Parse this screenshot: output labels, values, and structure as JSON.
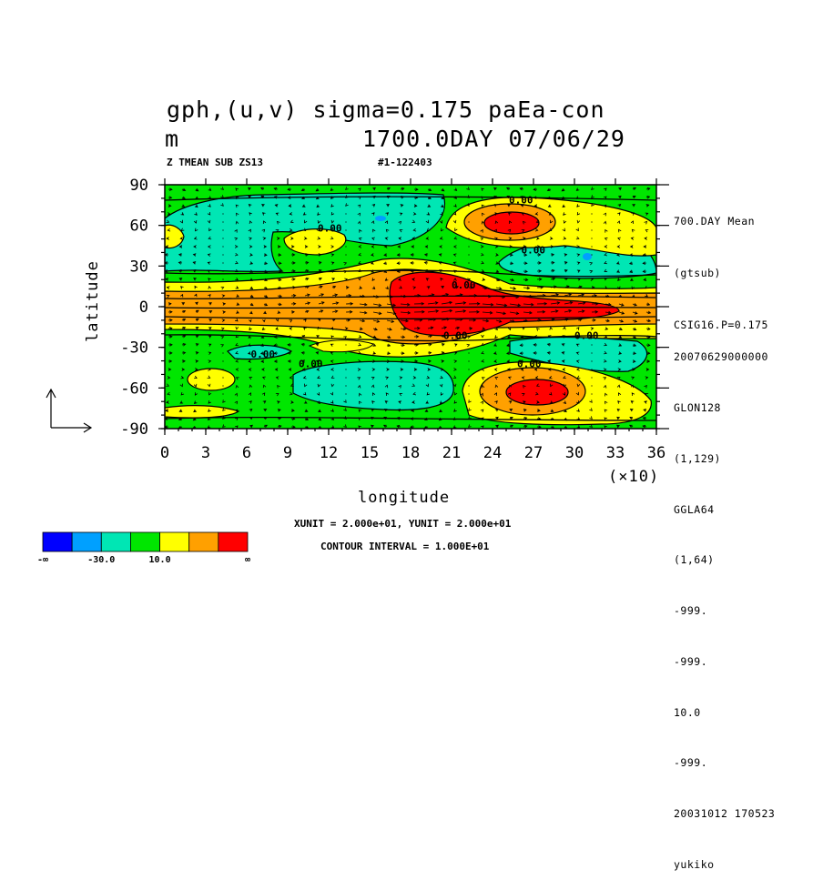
{
  "title": {
    "line1": "gph,(u,v) sigma=0.175 paEa-con",
    "line2_left": "m",
    "line2_right": "1700.0DAY 07/06/29"
  },
  "subtitle": {
    "left": "Z TMEAN SUB ZS13",
    "right": "#1-122403"
  },
  "side_info": [
    "700.DAY Mean",
    "(gtsub)",
    "CSIG16.P=0.175"
  ],
  "side_info2": [
    "20070629000000",
    "GLON128",
    "(1,129)",
    "GGLA64",
    "(1,64)",
    "-999.",
    "-999.",
    "10.0",
    "-999.",
    "20031012 170523",
    "yukiko"
  ],
  "units_text": "XUNIT = 2.000e+01, YUNIT = 2.000e+01",
  "contour_text": "CONTOUR INTERVAL = 1.000E+01",
  "colors": {
    "levels": [
      "#0000ff",
      "#00a0ff",
      "#00e6b4",
      "#00e600",
      "#ffff00",
      "#ffa000",
      "#ff0000"
    ]
  },
  "chart_data": {
    "type": "heatmap",
    "xlabel": "longitude",
    "ylabel": "latitude",
    "x_multiplier": "(×10)",
    "xlim": [
      0,
      36
    ],
    "ylim": [
      -90,
      90
    ],
    "xticks": [
      0,
      3,
      6,
      9,
      12,
      15,
      18,
      21,
      24,
      27,
      30,
      33,
      36
    ],
    "yticks": [
      90,
      60,
      30,
      0,
      -30,
      -60,
      -90
    ],
    "contour_labels": [
      {
        "text": "0.00",
        "x": 25.2,
        "y": 79
      },
      {
        "text": "0.00",
        "x": 11.2,
        "y": 58
      },
      {
        "text": "0.00",
        "x": 26.1,
        "y": 42
      },
      {
        "text": "0.00",
        "x": 21.0,
        "y": 16
      },
      {
        "text": "0.00",
        "x": 20.4,
        "y": -21
      },
      {
        "text": "0.00",
        "x": 30.0,
        "y": -21
      },
      {
        "text": "0.00",
        "x": 6.3,
        "y": -35
      },
      {
        "text": "0.00",
        "x": 9.8,
        "y": -42
      },
      {
        "text": "0.00",
        "x": 25.8,
        "y": -42
      }
    ],
    "colorbar": {
      "labels": [
        "-∞",
        "-30.0",
        "10.0",
        "∞"
      ]
    },
    "vector_reference": {
      "x": 20,
      "y": 20
    }
  }
}
